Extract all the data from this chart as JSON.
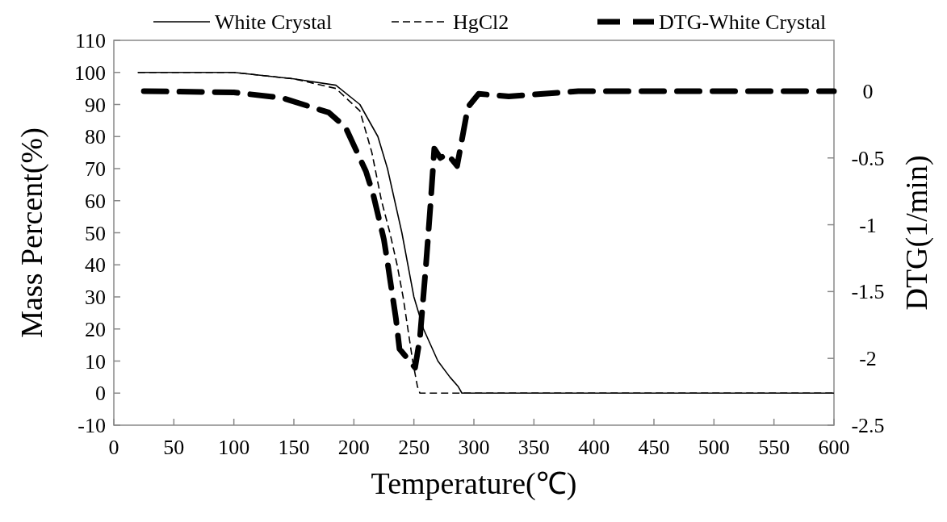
{
  "chart_data": {
    "type": "line",
    "xlabel": "Temperature(℃)",
    "ylabel": "Mass Percent(%)",
    "y2label": "DTG(1/min)",
    "xlim": [
      0,
      600
    ],
    "xticks": [
      0,
      50,
      100,
      150,
      200,
      250,
      300,
      350,
      400,
      450,
      500,
      550,
      600
    ],
    "ylim": [
      -10,
      110
    ],
    "yticks": [
      -10,
      0,
      10,
      20,
      30,
      40,
      50,
      60,
      70,
      80,
      90,
      100,
      110
    ],
    "y2lim": [
      -2.5,
      0.38
    ],
    "y2ticks": [
      -2.5,
      -2,
      -1.5,
      -1,
      -0.5,
      0
    ],
    "grid": false,
    "legend": "top",
    "marker": "none",
    "series": [
      {
        "name": "White Crystal",
        "color": "#000000",
        "line_style": "solid",
        "x": [
          20,
          100,
          150,
          185,
          205,
          220,
          228,
          234,
          240,
          245,
          250,
          258,
          270,
          280,
          287,
          290,
          600
        ],
        "values": [
          100,
          100,
          98,
          96,
          90,
          80,
          70,
          60,
          50,
          40,
          30,
          20,
          10,
          5,
          2,
          0,
          0
        ]
      },
      {
        "name": "HgCl2",
        "color": "#000000",
        "line_style": "dashed",
        "x": [
          20,
          100,
          150,
          185,
          205,
          215,
          223,
          230,
          236,
          241,
          245,
          249,
          253,
          255,
          600
        ],
        "values": [
          100,
          100,
          98,
          95,
          88,
          75,
          60,
          50,
          40,
          30,
          20,
          10,
          2,
          0,
          0
        ]
      },
      {
        "name": "DTG-White Crystal",
        "color": "#000000",
        "line_style": "dashed",
        "axis": "y2",
        "x": [
          25,
          100,
          140,
          179,
          193,
          210,
          216,
          225,
          228,
          235,
          238,
          251,
          255,
          260,
          264,
          267,
          272,
          278,
          286,
          295,
          304,
          329,
          387,
          600
        ],
        "values": [
          0,
          -0.01,
          -0.05,
          -0.16,
          -0.27,
          -0.6,
          -0.77,
          -1.11,
          -1.28,
          -1.7,
          -1.93,
          -2.07,
          -1.85,
          -1.31,
          -0.83,
          -0.43,
          -0.5,
          -0.47,
          -0.56,
          -0.12,
          -0.02,
          -0.04,
          0,
          0
        ]
      }
    ]
  }
}
